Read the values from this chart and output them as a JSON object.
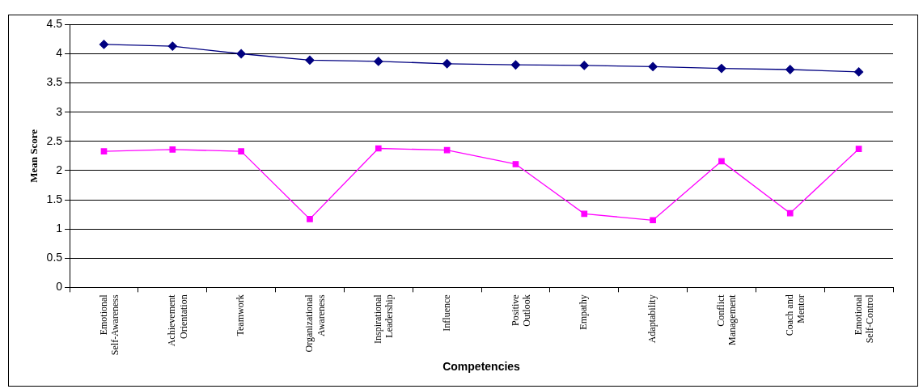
{
  "chart_data": {
    "type": "line",
    "ylabel": "Mean Score",
    "xlabel": "Competencies",
    "categories": [
      "Emotional Self-Awareness",
      "Achievement Orientation",
      "Teamwork",
      "Organizational Awareness",
      "Inspirational Leadership",
      "Influence",
      "Positive Outlook",
      "Empathy",
      "Adaptability",
      "Conflict Management",
      "Coach and Mentor",
      "Emotional Self-Control"
    ],
    "series": [
      {
        "color": "#000080",
        "marker": "diamond",
        "values": [
          4.16,
          4.13,
          4.0,
          3.89,
          3.87,
          3.83,
          3.81,
          3.8,
          3.78,
          3.75,
          3.73,
          3.69
        ]
      },
      {
        "color": "#ff00ff",
        "marker": "square",
        "values": [
          2.33,
          2.36,
          2.33,
          1.17,
          2.38,
          2.35,
          2.11,
          1.26,
          1.15,
          2.16,
          1.27,
          2.37
        ]
      }
    ],
    "ylim": [
      0,
      4.5
    ],
    "yticks": [
      0,
      0.5,
      1,
      1.5,
      2,
      2.5,
      3,
      3.5,
      4,
      4.5
    ],
    "grid": "y",
    "legend": false
  }
}
